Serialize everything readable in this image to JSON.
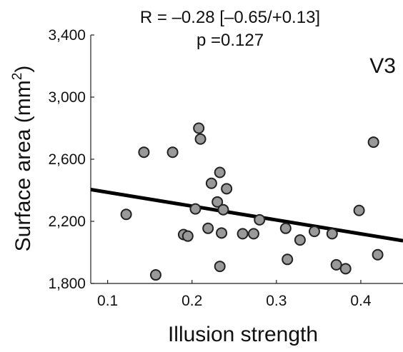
{
  "chart_data": {
    "type": "scatter",
    "title_line1": "R = –0.28 [–0.65/+0.13]",
    "title_line2": "p =0.127",
    "panel_label": "V3",
    "xlabel": "Illusion strength",
    "ylabel_main": "Surface area (mm",
    "ylabel_sup": "2",
    "ylabel_close": ")",
    "xlim": [
      0.08,
      0.45
    ],
    "ylim": [
      1800,
      3400
    ],
    "x_ticks": [
      0.1,
      0.2,
      0.3,
      0.4
    ],
    "x_tick_labels": [
      "0.1",
      "0.2",
      "0.3",
      "0.4"
    ],
    "y_ticks": [
      1800,
      2200,
      2600,
      3000,
      3400
    ],
    "y_tick_labels": [
      "1,800",
      "2,200",
      "2,600",
      "3,000",
      "3,400"
    ],
    "grid": false,
    "marker_fill": "#999999",
    "marker_edge": "#222222",
    "line_color": "#000000",
    "points": [
      {
        "x": 0.122,
        "y": 2245
      },
      {
        "x": 0.143,
        "y": 2645
      },
      {
        "x": 0.157,
        "y": 1855
      },
      {
        "x": 0.177,
        "y": 2645
      },
      {
        "x": 0.19,
        "y": 2115
      },
      {
        "x": 0.195,
        "y": 2105
      },
      {
        "x": 0.204,
        "y": 2280
      },
      {
        "x": 0.208,
        "y": 2800
      },
      {
        "x": 0.21,
        "y": 2730
      },
      {
        "x": 0.219,
        "y": 2155
      },
      {
        "x": 0.223,
        "y": 2445
      },
      {
        "x": 0.23,
        "y": 2325
      },
      {
        "x": 0.233,
        "y": 2515
      },
      {
        "x": 0.233,
        "y": 1910
      },
      {
        "x": 0.235,
        "y": 2125
      },
      {
        "x": 0.237,
        "y": 2275
      },
      {
        "x": 0.241,
        "y": 2410
      },
      {
        "x": 0.26,
        "y": 2120
      },
      {
        "x": 0.273,
        "y": 2120
      },
      {
        "x": 0.28,
        "y": 2210
      },
      {
        "x": 0.311,
        "y": 2155
      },
      {
        "x": 0.313,
        "y": 1955
      },
      {
        "x": 0.328,
        "y": 2080
      },
      {
        "x": 0.345,
        "y": 2135
      },
      {
        "x": 0.366,
        "y": 2120
      },
      {
        "x": 0.371,
        "y": 1920
      },
      {
        "x": 0.382,
        "y": 1895
      },
      {
        "x": 0.398,
        "y": 2270
      },
      {
        "x": 0.415,
        "y": 2710
      },
      {
        "x": 0.42,
        "y": 1985
      }
    ],
    "fit_line": {
      "x": [
        0.08,
        0.45
      ],
      "y": [
        2405,
        2075
      ]
    }
  }
}
